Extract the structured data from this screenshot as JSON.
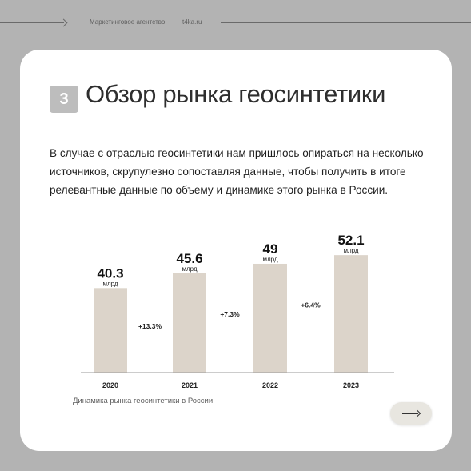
{
  "header": {
    "agency": "Маркетинговое агентство",
    "site": "t4ka.ru"
  },
  "section": {
    "number": "3",
    "title": "Обзор рынка геосинтетики"
  },
  "intro_text": "В случае с отраслью геосинтетики нам пришлось опираться на несколько источников, скрупулезно сопоставляя данные, чтобы получить в итоге релевантные данные по объему и динамике этого рынка в России.",
  "chart_data": {
    "type": "bar",
    "categories": [
      "2020",
      "2021",
      "2022",
      "2023"
    ],
    "values": [
      40.3,
      45.6,
      49,
      52.1
    ],
    "value_labels": [
      "40.3",
      "45.6",
      "49",
      "52.1"
    ],
    "unit": "млрд",
    "growth": [
      "+13.3%",
      "+7.3%",
      "+6.4%"
    ],
    "caption": "Динамика рынка геосинтетики в России",
    "legend": "none",
    "grid": false,
    "ylim": [
      0,
      55
    ],
    "bar_color": "#dcd4ca"
  },
  "nav": {
    "next_icon": "arrow-right-icon"
  }
}
